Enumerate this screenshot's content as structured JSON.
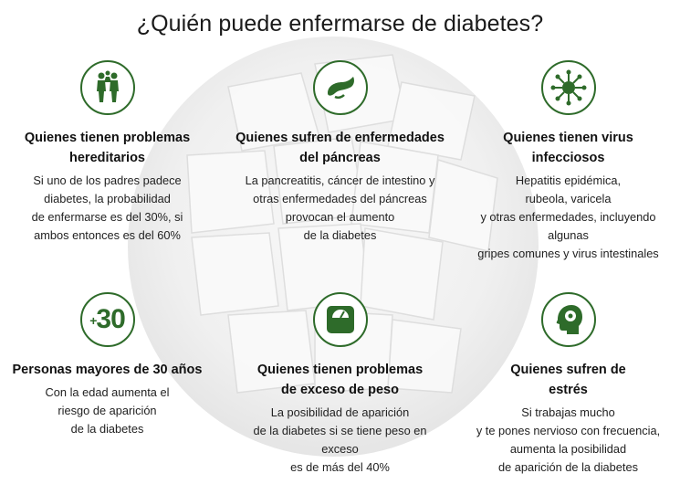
{
  "title": "¿Quién puede enfermarse de diabetes?",
  "colors": {
    "accent": "#2e6b2a"
  },
  "cards": [
    {
      "icon": "family-icon",
      "heading": "Quienes tienen problemas\nhereditarios",
      "body": "Si uno de los padres padece\ndiabetes, la probabilidad\nde enfermarse es del 30%, si\nambos entonces es del 60%"
    },
    {
      "icon": "pancreas-icon",
      "heading": "Quienes sufren de enfermedades\ndel páncreas",
      "body": "La pancreatitis, cáncer de intestino y\notras enfermedades del páncreas\nprovocan el aumento\nde la diabetes"
    },
    {
      "icon": "virus-icon",
      "heading": "Quienes tienen virus\ninfecciosos",
      "body": "Hepatitis epidémica,\nrubeola, varicela\ny otras enfermedades, incluyendo\nalgunas\ngripes comunes y virus intestinales"
    },
    {
      "icon": "plus-30-icon",
      "icon_text": "30",
      "icon_prefix": "+",
      "heading": "Personas mayores de 30 años",
      "body": "Con la edad aumenta el\nriesgo de aparición\nde la diabetes"
    },
    {
      "icon": "scale-icon",
      "heading": "Quienes tienen problemas\nde exceso de peso",
      "body": "La posibilidad de aparición\nde la diabetes si se tiene peso en\nexceso\nes de más del 40%"
    },
    {
      "icon": "stress-head-icon",
      "heading": "Quienes sufren de\nestrés",
      "body": "Si trabajas mucho\ny te pones nervioso con frecuencia,\naumenta la posibilidad\nde aparición de la diabetes"
    }
  ]
}
